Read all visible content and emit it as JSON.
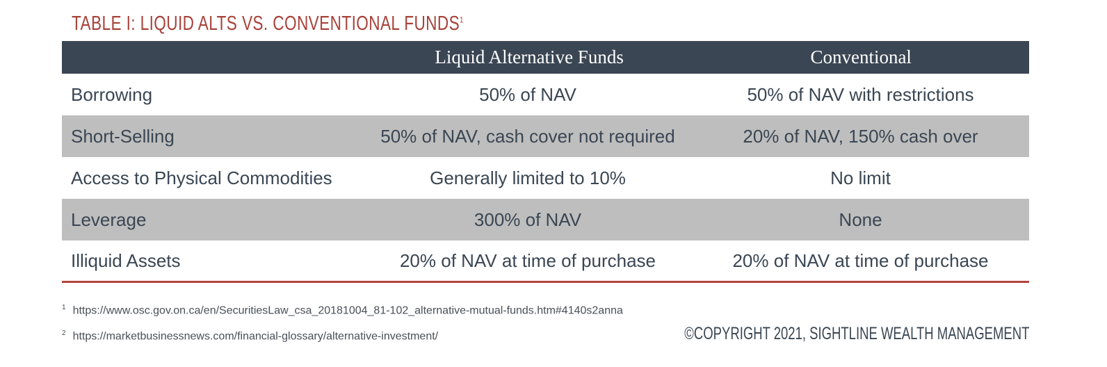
{
  "title": {
    "text": "TABLE I: LIQUID ALTS VS. CONVENTIONAL FUNDS",
    "footnote_ref": "1"
  },
  "table": {
    "columns": [
      "",
      "Liquid Alternative Funds",
      "Conventional"
    ],
    "rows": [
      [
        "Borrowing",
        "50% of NAV",
        "50% of NAV with restrictions"
      ],
      [
        "Short-Selling",
        "50% of NAV, cash cover not required",
        "20% of NAV, 150% cash over"
      ],
      [
        "Access to Physical Commodities",
        "Generally limited to 10%",
        "No limit"
      ],
      [
        "Leverage",
        "300% of NAV",
        "None"
      ],
      [
        "Illiquid Assets",
        "20% of NAV at time of purchase",
        "20% of NAV at time of purchase"
      ]
    ],
    "colors": {
      "header_bg": "#3a4653",
      "shaded_row_bg": "#bebebe",
      "rule": "#b3413a"
    }
  },
  "footnotes": [
    {
      "num": "1",
      "text": "https://www.osc.gov.on.ca/en/SecuritiesLaw_csa_20181004_81-102_alternative-mutual-funds.htm#4140s2anna"
    },
    {
      "num": "2",
      "text": "https://marketbusinessnews.com/financial-glossary/alternative-investment/"
    }
  ],
  "copyright": "©COPYRIGHT 2021, SIGHTLINE WEALTH MANAGEMENT",
  "colors": {
    "title": "#a8423a",
    "text": "#3a4653"
  }
}
